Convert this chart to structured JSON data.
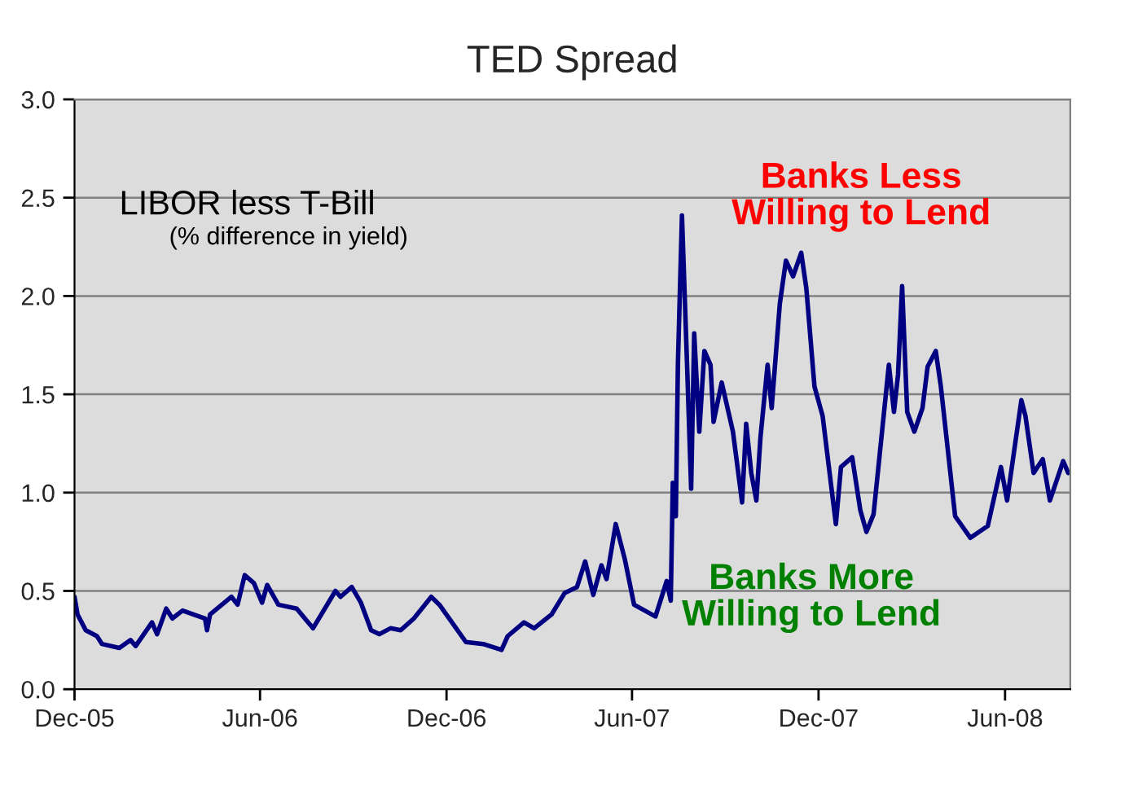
{
  "chart_data": {
    "type": "line",
    "title": "TED Spread",
    "annotations": [
      "LIBOR less T-Bill",
      "(% difference in yield)",
      "Banks Less\nWilling to Lend",
      "Banks More\nWilling to Lend"
    ],
    "series": [
      {
        "color": "#000080",
        "x": [
          "2005-12-01",
          "2005-12-04",
          "2005-12-12",
          "2005-12-23",
          "2005-12-28",
          "2006-01-14",
          "2006-01-25",
          "2006-01-30",
          "2006-02-15",
          "2006-02-20",
          "2006-03-01",
          "2006-03-07",
          "2006-03-17",
          "2006-04-08",
          "2006-04-10",
          "2006-04-13",
          "2006-05-04",
          "2006-05-10",
          "2006-05-17",
          "2006-05-26",
          "2006-06-03",
          "2006-06-08",
          "2006-06-19",
          "2006-07-07",
          "2006-07-23",
          "2006-08-14",
          "2006-08-19",
          "2006-08-30",
          "2006-09-08",
          "2006-09-18",
          "2006-09-26",
          "2006-10-07",
          "2006-10-17",
          "2006-10-30",
          "2006-11-16",
          "2006-11-24",
          "2006-12-20",
          "2007-01-06",
          "2007-01-24",
          "2007-01-30",
          "2007-02-15",
          "2007-02-25",
          "2007-03-14",
          "2007-03-27",
          "2007-04-08",
          "2007-04-16",
          "2007-04-24",
          "2007-05-02",
          "2007-05-07",
          "2007-05-16",
          "2007-05-25",
          "2007-06-03",
          "2007-06-24",
          "2007-07-05",
          "2007-07-09",
          "2007-07-11",
          "2007-07-14",
          "2007-07-16",
          "2007-07-20",
          "2007-07-25",
          "2007-07-29",
          "2007-08-01",
          "2007-08-06",
          "2007-08-11",
          "2007-08-17",
          "2007-08-20",
          "2007-08-28",
          "2007-09-08",
          "2007-09-17",
          "2007-09-21",
          "2007-09-26",
          "2007-10-01",
          "2007-10-05",
          "2007-10-12",
          "2007-10-16",
          "2007-10-24",
          "2007-10-30",
          "2007-11-06",
          "2007-11-14",
          "2007-11-19",
          "2007-11-27",
          "2007-12-05",
          "2007-12-18",
          "2007-12-23",
          "2008-01-03",
          "2008-01-11",
          "2008-01-17",
          "2008-01-24",
          "2008-02-08",
          "2008-02-13",
          "2008-02-17",
          "2008-02-21",
          "2008-02-26",
          "2008-03-04",
          "2008-03-12",
          "2008-03-17",
          "2008-03-25",
          "2008-03-30",
          "2008-04-13",
          "2008-04-28",
          "2008-05-15",
          "2008-05-28",
          "2008-06-03",
          "2008-06-17",
          "2008-06-21",
          "2008-06-29",
          "2008-07-08",
          "2008-07-15",
          "2008-07-28",
          "2008-08-02"
        ],
        "values": [
          0.47,
          0.38,
          0.3,
          0.27,
          0.23,
          0.21,
          0.25,
          0.22,
          0.34,
          0.28,
          0.41,
          0.36,
          0.4,
          0.36,
          0.3,
          0.38,
          0.47,
          0.43,
          0.58,
          0.54,
          0.44,
          0.53,
          0.43,
          0.41,
          0.31,
          0.5,
          0.47,
          0.52,
          0.44,
          0.3,
          0.28,
          0.31,
          0.3,
          0.36,
          0.47,
          0.43,
          0.24,
          0.23,
          0.2,
          0.27,
          0.34,
          0.31,
          0.38,
          0.49,
          0.52,
          0.65,
          0.48,
          0.63,
          0.56,
          0.84,
          0.66,
          0.43,
          0.37,
          0.55,
          0.45,
          1.05,
          0.88,
          1.65,
          2.41,
          1.65,
          1.02,
          1.81,
          1.31,
          1.72,
          1.65,
          1.36,
          1.56,
          1.31,
          0.95,
          1.35,
          1.1,
          0.96,
          1.28,
          1.65,
          1.43,
          1.96,
          2.18,
          2.1,
          2.22,
          2.04,
          1.54,
          1.39,
          0.84,
          1.13,
          1.18,
          0.91,
          0.8,
          0.89,
          1.65,
          1.41,
          1.6,
          2.05,
          1.41,
          1.31,
          1.43,
          1.64,
          1.72,
          1.54,
          0.88,
          0.77,
          0.83,
          1.13,
          0.96,
          1.47,
          1.39,
          1.1,
          1.17,
          0.96,
          1.16,
          1.1
        ]
      }
    ],
    "xlim": [
      "2005-12-01",
      "2008-08-04"
    ],
    "xticks": [
      {
        "value": "2005-12-01",
        "label": "Dec-05"
      },
      {
        "value": "2006-06-01",
        "label": "Jun-06"
      },
      {
        "value": "2006-12-01",
        "label": "Dec-06"
      },
      {
        "value": "2007-06-01",
        "label": "Jun-07"
      },
      {
        "value": "2007-12-01",
        "label": "Dec-07"
      },
      {
        "value": "2008-06-01",
        "label": "Jun-08"
      }
    ],
    "ylim": [
      0,
      3
    ],
    "yticks": [
      {
        "value": 0,
        "label": "0.0"
      },
      {
        "value": 0.5,
        "label": "0.5"
      },
      {
        "value": 1,
        "label": "1.0"
      },
      {
        "value": 1.5,
        "label": "1.5"
      },
      {
        "value": 2,
        "label": "2.0"
      },
      {
        "value": 2.5,
        "label": "2.5"
      },
      {
        "value": 3,
        "label": "3.0"
      }
    ],
    "grid": "y",
    "legend": false,
    "marker": "none",
    "line_style": "solid"
  }
}
